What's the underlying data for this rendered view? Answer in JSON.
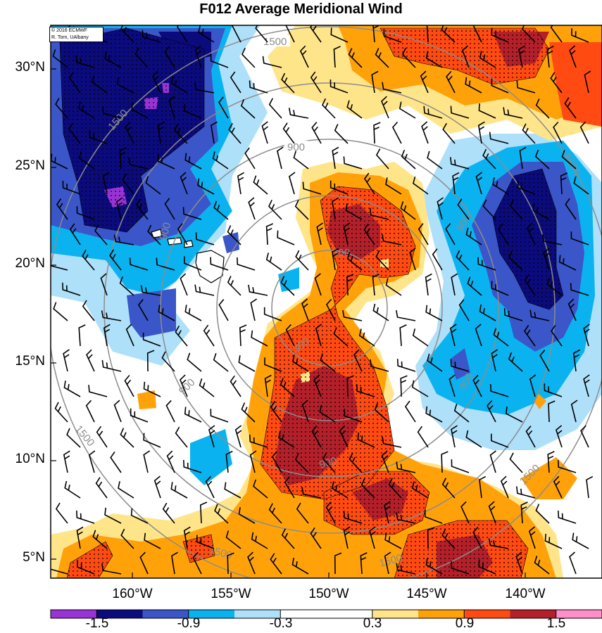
{
  "title": "F012 Average Meridional Wind",
  "credit": [
    "© 2016 ECMWF",
    "R. Torn, UAlbany"
  ],
  "lat_labels": [
    "30°N",
    "25°N",
    "20°N",
    "15°N",
    "10°N",
    "5°N"
  ],
  "lon_labels": [
    "160°W",
    "155°W",
    "150°W",
    "145°W",
    "140°W"
  ],
  "contour_labels": [
    "1500",
    "900",
    "300"
  ],
  "colorbar": {
    "labels": [
      "-1.5",
      "-0.9",
      "-0.3",
      "0.3",
      "0.9",
      "1.5"
    ],
    "colors": [
      "#9a33d6",
      "#0b0b7e",
      "#3a56c8",
      "#0ab3f0",
      "#aee0fa",
      "#ffffff",
      "#ffffff",
      "#ffe58a",
      "#ffa20a",
      "#ff4a12",
      "#b4202a",
      "#ff8fc8"
    ]
  },
  "palette": {
    "ocean": "#ffffff",
    "contour": "#8c8c8c",
    "barb": "#000000"
  }
}
